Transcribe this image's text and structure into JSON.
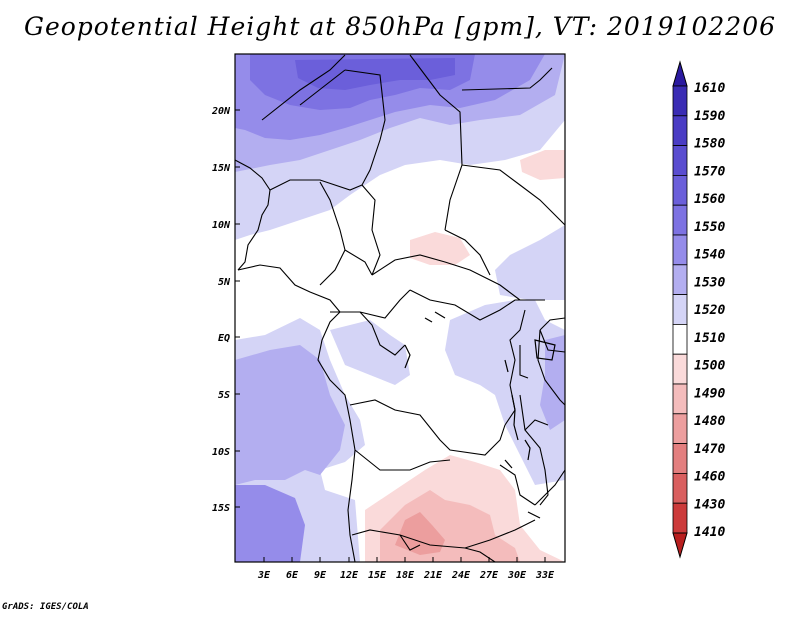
{
  "title": "Geopotential Height at 850hPa [gpm], VT: 2019102206",
  "footer": "GrADS: IGES/COLA",
  "map": {
    "lat_labels": [
      "20N",
      "15N",
      "10N",
      "5N",
      "EQ",
      "5S",
      "10S",
      "15S"
    ],
    "lon_labels": [
      "3E",
      "6E",
      "9E",
      "12E",
      "15E",
      "18E",
      "21E",
      "24E",
      "27E",
      "30E",
      "33E"
    ]
  },
  "colorbar": {
    "levels": [
      "1610",
      "1590",
      "1580",
      "1570",
      "1560",
      "1550",
      "1540",
      "1530",
      "1520",
      "1510",
      "1500",
      "1490",
      "1480",
      "1470",
      "1460",
      "1430",
      "1410"
    ],
    "colors": [
      "#2b1aa0",
      "#3a2cb4",
      "#4a3cc4",
      "#5a4dd0",
      "#6b5fda",
      "#7d72e2",
      "#958cea",
      "#b3aef0",
      "#d4d4f6",
      "#ffffff",
      "#fadada",
      "#f4bcbc",
      "#ec9e9e",
      "#e37f7f",
      "#d95f5f",
      "#cc3b3b",
      "#b81f1f"
    ]
  }
}
